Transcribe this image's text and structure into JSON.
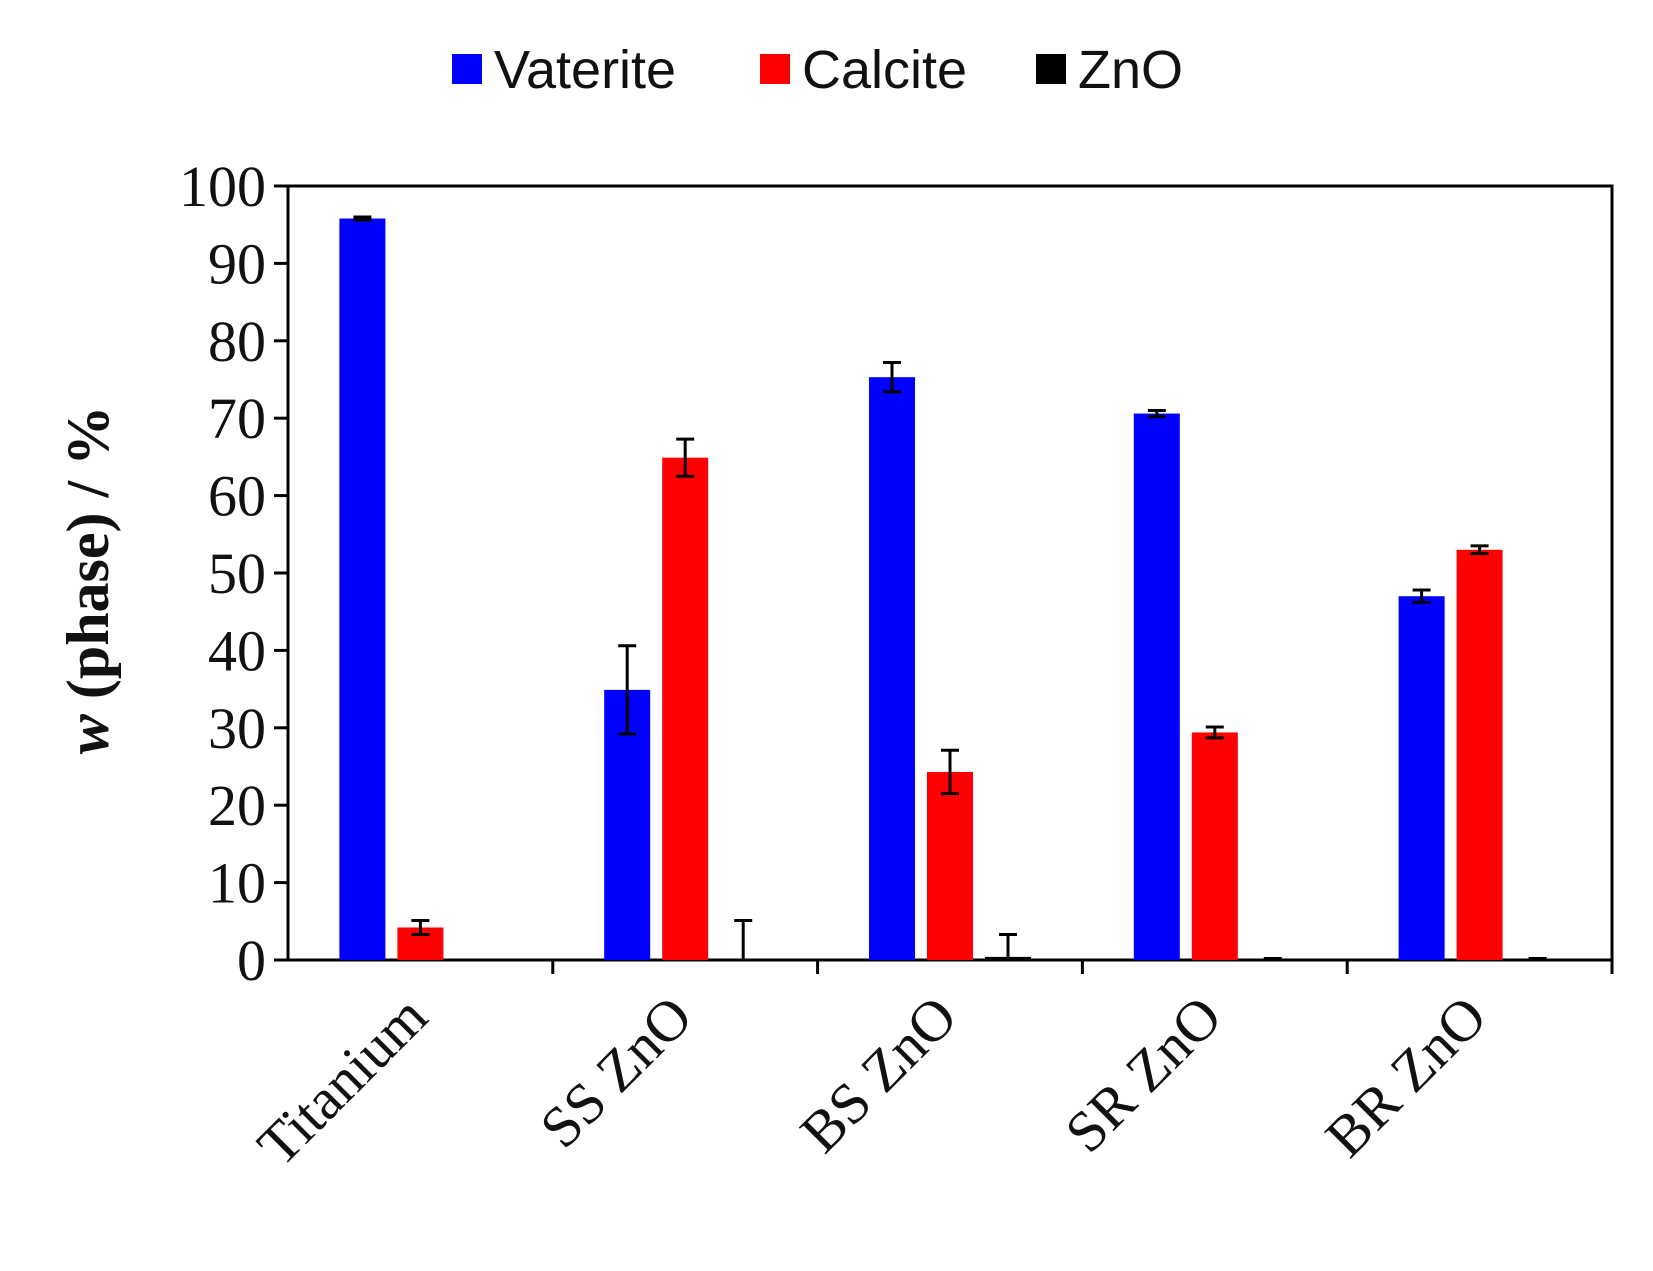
{
  "chart_data": {
    "type": "bar",
    "title": "",
    "xlabel": "",
    "ylabel_italic": "w",
    "ylabel_rest": " (phase) / %",
    "ylim": [
      0,
      100
    ],
    "yticks": [
      0,
      10,
      20,
      30,
      40,
      50,
      60,
      70,
      80,
      90,
      100
    ],
    "grid": false,
    "legend_position": "top-center",
    "categories": [
      "Titanium",
      "SS ZnO",
      "BS ZnO",
      "SR ZnO",
      "BR ZnO"
    ],
    "series": [
      {
        "name": "Vaterite",
        "color": "#0000ff",
        "values": [
          95.8,
          34.9,
          75.3,
          70.6,
          47.0
        ],
        "errors": [
          0.2,
          5.7,
          1.9,
          0.4,
          0.8
        ]
      },
      {
        "name": "Calcite",
        "color": "#ff0000",
        "values": [
          4.2,
          64.9,
          24.3,
          29.4,
          53.0
        ],
        "errors": [
          0.9,
          2.4,
          2.8,
          0.7,
          0.5
        ]
      },
      {
        "name": "ZnO",
        "color": "#000000",
        "values": [
          0.0,
          0.0,
          0.4,
          0.1,
          0.1
        ],
        "errors": [
          0.0,
          5.1,
          2.9,
          0.1,
          0.1
        ]
      }
    ]
  }
}
